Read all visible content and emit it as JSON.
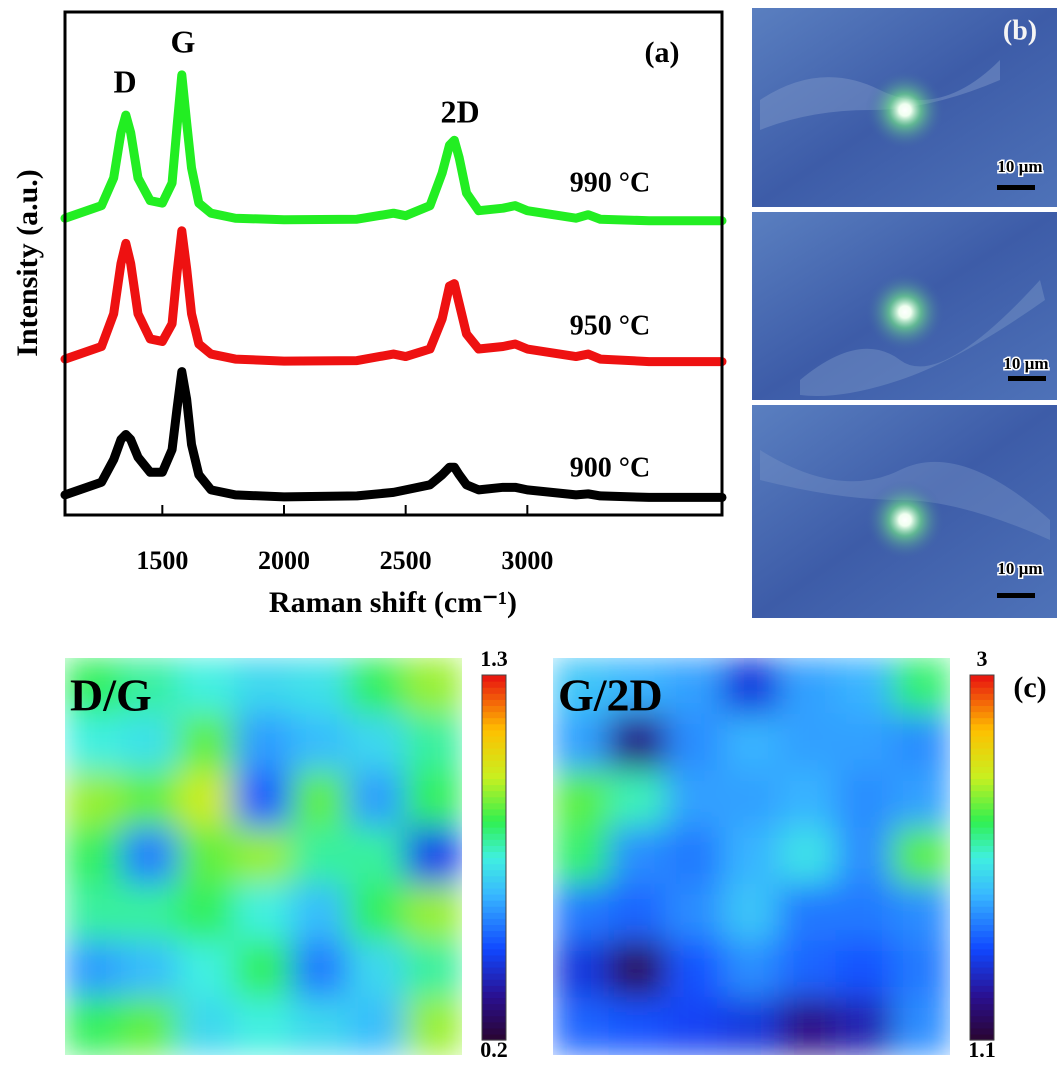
{
  "chart_data": [
    {
      "type": "line",
      "xlabel": "Raman shift (cm⁻¹)",
      "ylabel": "Intensity (a.u.)",
      "annotations": [
        "D",
        "G",
        "2D",
        "(a)"
      ],
      "x": [
        1100,
        1250,
        1300,
        1330,
        1350,
        1370,
        1400,
        1450,
        1500,
        1540,
        1560,
        1580,
        1600,
        1620,
        1650,
        1700,
        1800,
        2000,
        2300,
        2450,
        2500,
        2600,
        2650,
        2680,
        2700,
        2720,
        2750,
        2800,
        2900,
        2950,
        3000,
        3200,
        3250,
        3300,
        3500,
        3800
      ],
      "xlim": [
        1100,
        3800
      ],
      "xticks": [
        1500,
        2000,
        2500,
        3000
      ],
      "ylim": [
        0,
        10
      ],
      "series": [
        {
          "name": "990 °C",
          "color": "#22ee22",
          "values": [
            5.9,
            6.15,
            6.7,
            7.6,
            7.95,
            7.6,
            6.7,
            6.25,
            6.2,
            6.6,
            7.7,
            8.75,
            7.8,
            6.9,
            6.2,
            6.0,
            5.9,
            5.87,
            5.88,
            6.0,
            5.95,
            6.15,
            6.8,
            7.35,
            7.45,
            7.1,
            6.4,
            6.05,
            6.1,
            6.15,
            6.05,
            5.9,
            5.97,
            5.88,
            5.85,
            5.85
          ]
        },
        {
          "name": "950 °C",
          "color": "#ee1111",
          "values": [
            3.1,
            3.35,
            4.0,
            5.0,
            5.4,
            5.0,
            4.0,
            3.5,
            3.45,
            3.8,
            4.8,
            5.65,
            4.9,
            4.0,
            3.4,
            3.2,
            3.1,
            3.06,
            3.07,
            3.2,
            3.15,
            3.3,
            3.9,
            4.55,
            4.6,
            4.2,
            3.6,
            3.3,
            3.35,
            3.4,
            3.3,
            3.15,
            3.2,
            3.1,
            3.05,
            3.05
          ]
        },
        {
          "name": "900 °C",
          "color": "#000000",
          "values": [
            0.4,
            0.65,
            1.1,
            1.5,
            1.6,
            1.5,
            1.15,
            0.85,
            0.85,
            1.3,
            2.1,
            2.85,
            2.3,
            1.4,
            0.8,
            0.5,
            0.4,
            0.36,
            0.38,
            0.45,
            0.5,
            0.6,
            0.8,
            0.95,
            0.95,
            0.8,
            0.6,
            0.5,
            0.55,
            0.55,
            0.5,
            0.4,
            0.42,
            0.38,
            0.35,
            0.35
          ]
        }
      ]
    },
    {
      "type": "heatmap",
      "title": "D/G",
      "zlim": [
        0.2,
        1.3
      ],
      "zticks": [
        0.2,
        1.3
      ],
      "z": [
        [
          0.85,
          0.8,
          0.75,
          0.7,
          0.72,
          0.85,
          0.95
        ],
        [
          0.75,
          0.72,
          0.9,
          0.6,
          0.65,
          0.7,
          0.8
        ],
        [
          0.95,
          0.9,
          1.0,
          0.5,
          0.9,
          0.6,
          0.85
        ],
        [
          0.85,
          0.55,
          0.9,
          0.95,
          0.8,
          0.8,
          0.45
        ],
        [
          0.8,
          0.8,
          0.85,
          0.75,
          0.65,
          0.85,
          0.95
        ],
        [
          0.6,
          0.65,
          0.75,
          0.85,
          0.55,
          0.7,
          0.8
        ],
        [
          0.85,
          0.9,
          0.7,
          0.75,
          0.7,
          0.65,
          0.95
        ]
      ]
    },
    {
      "type": "heatmap",
      "title": "G/2D",
      "zlim": [
        1.1,
        3
      ],
      "zticks": [
        1.1,
        3
      ],
      "z": [
        [
          1.9,
          1.85,
          1.8,
          1.5,
          1.8,
          1.85,
          2.2
        ],
        [
          1.8,
          1.3,
          1.75,
          1.85,
          1.8,
          1.8,
          1.75
        ],
        [
          2.3,
          2.1,
          1.8,
          1.8,
          1.85,
          1.75,
          1.8
        ],
        [
          2.2,
          1.75,
          1.7,
          1.85,
          2.0,
          1.75,
          2.3
        ],
        [
          1.7,
          1.65,
          1.75,
          1.9,
          1.7,
          1.7,
          1.75
        ],
        [
          1.5,
          1.2,
          1.6,
          1.75,
          1.65,
          1.6,
          1.7
        ],
        [
          1.65,
          1.6,
          1.55,
          1.5,
          1.3,
          1.4,
          1.75
        ]
      ]
    }
  ],
  "micrographs": {
    "label": "(b)",
    "scale_bar_labels": [
      "10 µm",
      "10 µm",
      "10 µm"
    ]
  },
  "panel_c_label": "(c)"
}
